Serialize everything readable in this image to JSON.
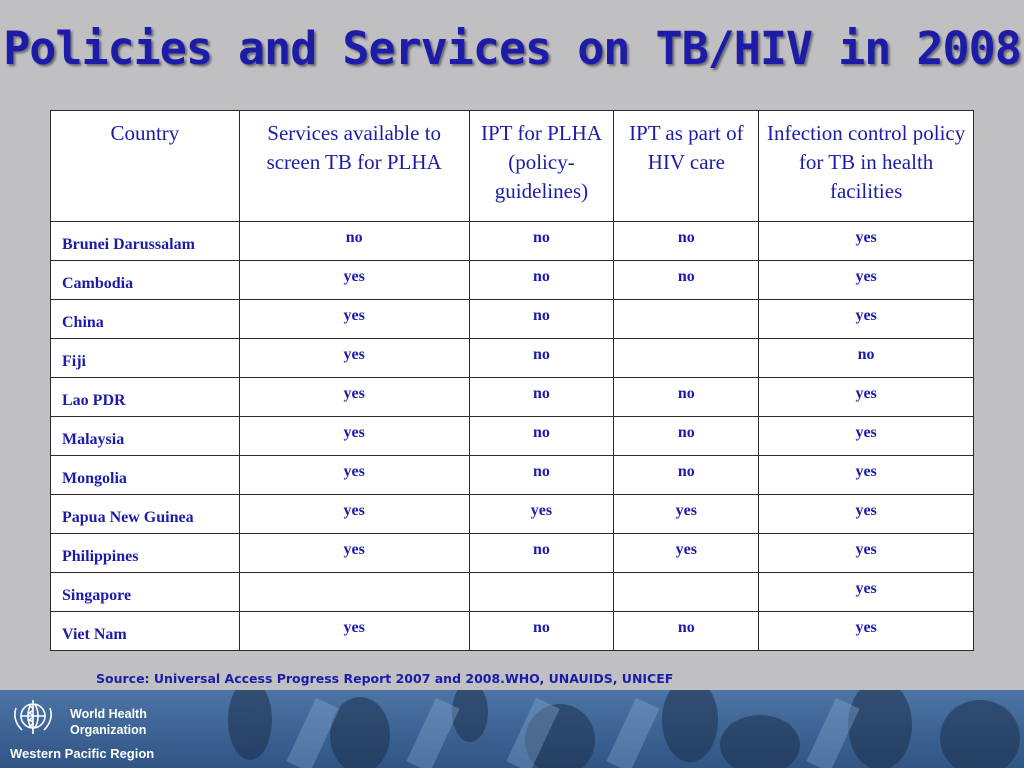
{
  "slide": {
    "title": "Policies and Services on TB/HIV in 2008",
    "source": "Source: Universal Access Progress Report 2007 and 2008.WHO, UNAUIDS, UNICEF"
  },
  "table": {
    "headers": [
      "Country",
      "Services available to screen TB for PLHA",
      "IPT for PLHA (policy-guidelines)",
      "IPT as part of HIV care",
      "Infection control policy for TB in health facilities"
    ],
    "rows": [
      {
        "country": "Brunei Darussalam",
        "screen": "no",
        "ipt_policy": "no",
        "ipt_care": "no",
        "infection_control": "yes"
      },
      {
        "country": "Cambodia",
        "screen": "yes",
        "ipt_policy": "no",
        "ipt_care": "no",
        "infection_control": "yes"
      },
      {
        "country": "China",
        "screen": "yes",
        "ipt_policy": "no",
        "ipt_care": "",
        "infection_control": "yes"
      },
      {
        "country": "Fiji",
        "screen": "yes",
        "ipt_policy": "no",
        "ipt_care": "",
        "infection_control": "no"
      },
      {
        "country": "Lao PDR",
        "screen": "yes",
        "ipt_policy": "no",
        "ipt_care": "no",
        "infection_control": "yes"
      },
      {
        "country": "Malaysia",
        "screen": "yes",
        "ipt_policy": "no",
        "ipt_care": "no",
        "infection_control": "yes"
      },
      {
        "country": "Mongolia",
        "screen": "yes",
        "ipt_policy": "no",
        "ipt_care": "no",
        "infection_control": "yes"
      },
      {
        "country": "Papua New Guinea",
        "screen": "yes",
        "ipt_policy": "yes",
        "ipt_care": "yes",
        "infection_control": "yes"
      },
      {
        "country": "Philippines",
        "screen": "yes",
        "ipt_policy": "no",
        "ipt_care": "yes",
        "infection_control": "yes"
      },
      {
        "country": "Singapore",
        "screen": "",
        "ipt_policy": "",
        "ipt_care": "",
        "infection_control": "yes"
      },
      {
        "country": "Viet Nam",
        "screen": "yes",
        "ipt_policy": "no",
        "ipt_care": "no",
        "infection_control": "yes"
      }
    ]
  },
  "footer": {
    "org_line1": "World Health",
    "org_line2": "Organization",
    "region": "Western Pacific Region",
    "logo_icon": "who-emblem-icon",
    "band_color": "#3a6294"
  }
}
